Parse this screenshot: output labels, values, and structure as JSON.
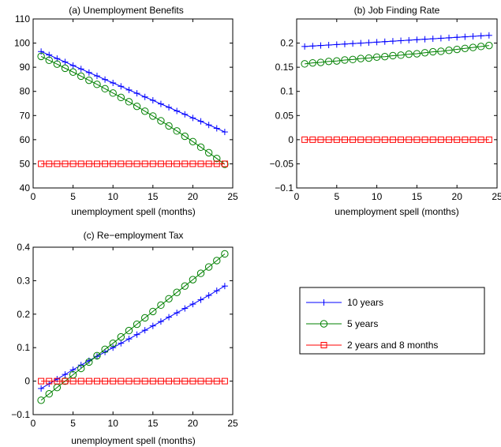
{
  "legend": {
    "placement": "separate box, right of panel (c)",
    "entries": [
      {
        "label": "10 years",
        "color": "#0000ff",
        "marker": "plus"
      },
      {
        "label": "5 years",
        "color": "#008000",
        "marker": "circle"
      },
      {
        "label": "2 years and 8 months",
        "color": "#ff0000",
        "marker": "square"
      }
    ]
  },
  "chart_data": [
    {
      "type": "line",
      "title": "(a) Unemployment Benefits",
      "xlabel": "unemployment spell (months)",
      "ylabel": "",
      "xlim": [
        0,
        25
      ],
      "ylim": [
        40,
        110
      ],
      "xticks": [
        "0",
        "5",
        "10",
        "15",
        "20",
        "25"
      ],
      "yticks": [
        "40",
        "50",
        "60",
        "70",
        "80",
        "90",
        "100",
        "110"
      ],
      "grid": false,
      "series": [
        {
          "name": "10 years",
          "color": "#0000ff",
          "marker": "plus",
          "x": [
            1,
            2,
            3,
            4,
            5,
            6,
            7,
            8,
            9,
            10,
            11,
            12,
            13,
            14,
            15,
            16,
            17,
            18,
            19,
            20,
            21,
            22,
            23,
            24
          ],
          "y": [
            96.5,
            95.1,
            93.6,
            92.2,
            90.7,
            89.3,
            87.8,
            86.4,
            84.9,
            83.5,
            82.1,
            80.6,
            79.2,
            77.7,
            76.3,
            74.8,
            73.4,
            71.9,
            70.5,
            69.0,
            67.6,
            66.1,
            64.7,
            63.2
          ]
        },
        {
          "name": "5 years",
          "color": "#008000",
          "marker": "circle",
          "x": [
            1,
            2,
            3,
            4,
            5,
            6,
            7,
            8,
            9,
            10,
            11,
            12,
            13,
            14,
            15,
            16,
            17,
            18,
            19,
            20,
            21,
            22,
            23,
            24
          ],
          "y": [
            94.5,
            92.9,
            91.3,
            89.6,
            88.0,
            86.3,
            84.6,
            82.9,
            81.1,
            79.3,
            77.5,
            75.7,
            73.8,
            71.8,
            69.8,
            67.8,
            65.7,
            63.6,
            61.4,
            59.2,
            56.9,
            54.6,
            52.2,
            49.8
          ]
        },
        {
          "name": "2 years and 8 months",
          "color": "#ff0000",
          "marker": "square",
          "x": [
            1,
            2,
            3,
            4,
            5,
            6,
            7,
            8,
            9,
            10,
            11,
            12,
            13,
            14,
            15,
            16,
            17,
            18,
            19,
            20,
            21,
            22,
            23,
            24
          ],
          "y": [
            50,
            50,
            50,
            50,
            50,
            50,
            50,
            50,
            50,
            50,
            50,
            50,
            50,
            50,
            50,
            50,
            50,
            50,
            50,
            50,
            50,
            50,
            50,
            50
          ]
        }
      ]
    },
    {
      "type": "line",
      "title": "(b) Job Finding Rate",
      "xlabel": "unemployment spell (months)",
      "ylabel": "",
      "xlim": [
        0,
        25
      ],
      "ylim": [
        -0.1,
        0.25
      ],
      "xticks": [
        "0",
        "5",
        "10",
        "15",
        "20",
        "25"
      ],
      "yticks": [
        "−0.1",
        "−0.05",
        "0",
        "0.05",
        "0.1",
        "0.15",
        "0.2"
      ],
      "grid": false,
      "series": [
        {
          "name": "10 years",
          "color": "#0000ff",
          "marker": "plus",
          "x": [
            1,
            2,
            3,
            4,
            5,
            6,
            7,
            8,
            9,
            10,
            11,
            12,
            13,
            14,
            15,
            16,
            17,
            18,
            19,
            20,
            21,
            22,
            23,
            24
          ],
          "y": [
            0.193,
            0.194,
            0.195,
            0.196,
            0.197,
            0.198,
            0.199,
            0.2,
            0.201,
            0.202,
            0.203,
            0.204,
            0.205,
            0.206,
            0.207,
            0.208,
            0.209,
            0.21,
            0.211,
            0.212,
            0.213,
            0.214,
            0.215,
            0.216
          ]
        },
        {
          "name": "5 years",
          "color": "#008000",
          "marker": "circle",
          "x": [
            1,
            2,
            3,
            4,
            5,
            6,
            7,
            8,
            9,
            10,
            11,
            12,
            13,
            14,
            15,
            16,
            17,
            18,
            19,
            20,
            21,
            22,
            23,
            24
          ],
          "y": [
            0.157,
            0.159,
            0.16,
            0.162,
            0.163,
            0.165,
            0.166,
            0.168,
            0.169,
            0.171,
            0.172,
            0.174,
            0.175,
            0.177,
            0.178,
            0.18,
            0.182,
            0.183,
            0.185,
            0.187,
            0.189,
            0.191,
            0.193,
            0.195
          ]
        },
        {
          "name": "2 years and 8 months",
          "color": "#ff0000",
          "marker": "square",
          "x": [
            1,
            2,
            3,
            4,
            5,
            6,
            7,
            8,
            9,
            10,
            11,
            12,
            13,
            14,
            15,
            16,
            17,
            18,
            19,
            20,
            21,
            22,
            23,
            24
          ],
          "y": [
            0,
            0,
            0,
            0,
            0,
            0,
            0,
            0,
            0,
            0,
            0,
            0,
            0,
            0,
            0,
            0,
            0,
            0,
            0,
            0,
            0,
            0,
            0,
            0
          ]
        }
      ]
    },
    {
      "type": "line",
      "title": "(c) Re−employment Tax",
      "xlabel": "unemployment spell (months)",
      "ylabel": "",
      "xlim": [
        0,
        25
      ],
      "ylim": [
        -0.1,
        0.4
      ],
      "xticks": [
        "0",
        "5",
        "10",
        "15",
        "20",
        "25"
      ],
      "yticks": [
        "−0.1",
        "0",
        "0.1",
        "0.2",
        "0.3",
        "0.4"
      ],
      "grid": false,
      "series": [
        {
          "name": "10 years",
          "color": "#0000ff",
          "marker": "plus",
          "x": [
            1,
            2,
            3,
            4,
            5,
            6,
            7,
            8,
            9,
            10,
            11,
            12,
            13,
            14,
            15,
            16,
            17,
            18,
            19,
            20,
            21,
            22,
            23,
            24
          ],
          "y": [
            -0.022,
            -0.008,
            0.006,
            0.02,
            0.034,
            0.048,
            0.061,
            0.074,
            0.087,
            0.1,
            0.113,
            0.126,
            0.139,
            0.152,
            0.165,
            0.178,
            0.191,
            0.204,
            0.217,
            0.23,
            0.243,
            0.256,
            0.27,
            0.284
          ]
        },
        {
          "name": "5 years",
          "color": "#008000",
          "marker": "circle",
          "x": [
            1,
            2,
            3,
            4,
            5,
            6,
            7,
            8,
            9,
            10,
            11,
            12,
            13,
            14,
            15,
            16,
            17,
            18,
            19,
            20,
            21,
            22,
            23,
            24
          ],
          "y": [
            -0.057,
            -0.038,
            -0.019,
            0.0,
            0.019,
            0.038,
            0.057,
            0.076,
            0.095,
            0.113,
            0.132,
            0.151,
            0.17,
            0.189,
            0.208,
            0.227,
            0.246,
            0.265,
            0.284,
            0.303,
            0.322,
            0.341,
            0.36,
            0.38
          ]
        },
        {
          "name": "2 years and 8 months",
          "color": "#ff0000",
          "marker": "square",
          "x": [
            1,
            2,
            3,
            4,
            5,
            6,
            7,
            8,
            9,
            10,
            11,
            12,
            13,
            14,
            15,
            16,
            17,
            18,
            19,
            20,
            21,
            22,
            23,
            24
          ],
          "y": [
            0,
            0,
            0,
            0,
            0,
            0,
            0,
            0,
            0,
            0,
            0,
            0,
            0,
            0,
            0,
            0,
            0,
            0,
            0,
            0,
            0,
            0,
            0,
            0
          ]
        }
      ]
    }
  ]
}
